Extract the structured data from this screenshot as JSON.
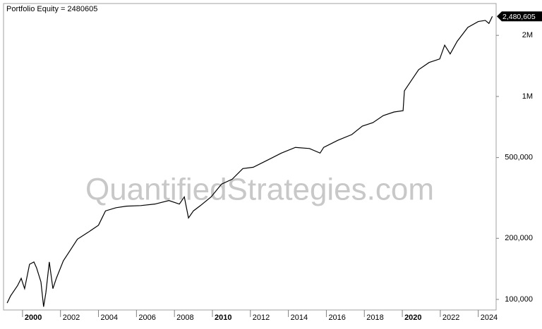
{
  "chart_data": {
    "type": "line",
    "title": "Portfolio Equity = 2480605",
    "watermark": "QuantifiedStrategies.com",
    "log_scale_y": true,
    "x": [
      1999.19,
      1999.37,
      1999.74,
      1999.93,
      2000.11,
      2000.37,
      2000.6,
      2000.74,
      2000.97,
      2001.11,
      2001.23,
      2001.41,
      2001.6,
      2001.78,
      2002.15,
      2002.52,
      2002.89,
      2003.45,
      2004.0,
      2004.37,
      2004.93,
      2005.48,
      2006.23,
      2006.97,
      2007.71,
      2008.26,
      2008.52,
      2008.74,
      2009.0,
      2009.37,
      2009.93,
      2010.48,
      2011.04,
      2011.6,
      2012.15,
      2012.89,
      2013.63,
      2014.37,
      2015.11,
      2015.67,
      2015.86,
      2016.6,
      2017.34,
      2017.89,
      2018.45,
      2019.0,
      2019.56,
      2020.04,
      2020.11,
      2020.48,
      2020.86,
      2021.41,
      2021.97,
      2022.23,
      2022.52,
      2022.89,
      2023.45,
      2024.0,
      2024.37,
      2024.56,
      2024.74
    ],
    "series": [
      {
        "name": "Portfolio Equity",
        "color": "#000000",
        "values": [
          96000,
          104000,
          117000,
          127000,
          113000,
          149000,
          153000,
          143000,
          122000,
          92000,
          108000,
          153000,
          113000,
          127000,
          155000,
          175000,
          198000,
          214000,
          232000,
          273000,
          283000,
          288000,
          290000,
          295000,
          307000,
          295000,
          320000,
          252000,
          273000,
          290000,
          320000,
          370000,
          391000,
          441000,
          448000,
          485000,
          526000,
          561000,
          554000,
          526000,
          561000,
          608000,
          649000,
          714000,
          743000,
          805000,
          838000,
          851000,
          1066000,
          1200000,
          1355000,
          1470000,
          1530000,
          1790000,
          1620000,
          1870000,
          2190000,
          2340000,
          2370000,
          2290000,
          2480605
        ],
        "value_labels": [
          null,
          null,
          null,
          null,
          null,
          null,
          null,
          null,
          null,
          null,
          null,
          null,
          null,
          null,
          null,
          null,
          null,
          null,
          null,
          null,
          null,
          null,
          null,
          null,
          null,
          null,
          null,
          null,
          null,
          null,
          null,
          null,
          null,
          null,
          null,
          null,
          null,
          null,
          null,
          null,
          null,
          null,
          null,
          null,
          null,
          null,
          null,
          null,
          null,
          null,
          null,
          null,
          null,
          null,
          null,
          null,
          null,
          null,
          null,
          null,
          "2,480,605"
        ]
      }
    ],
    "xlim": [
      1999.0,
      2024.94
    ],
    "xticks": [
      2000,
      2002,
      2004,
      2006,
      2008,
      2010,
      2012,
      2014,
      2016,
      2018,
      2020,
      2022,
      2024
    ],
    "ylim": [
      88700,
      2870000
    ],
    "yticks": [
      {
        "value": 100000,
        "label": "100,000"
      },
      {
        "value": 200000,
        "label": "200,000"
      },
      {
        "value": 500000,
        "label": "500,000"
      },
      {
        "value": 1000000,
        "label": "1M"
      },
      {
        "value": 2000000,
        "label": "2M"
      }
    ]
  }
}
